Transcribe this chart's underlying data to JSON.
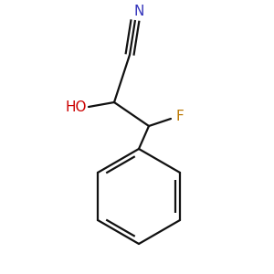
{
  "background_color": "#ffffff",
  "bond_color": "#111111",
  "N_color": "#3333bb",
  "O_color": "#cc0000",
  "F_color": "#bb7700",
  "line_width": 1.6,
  "N_label": "N",
  "HO_label": "HO",
  "F_label": "F"
}
